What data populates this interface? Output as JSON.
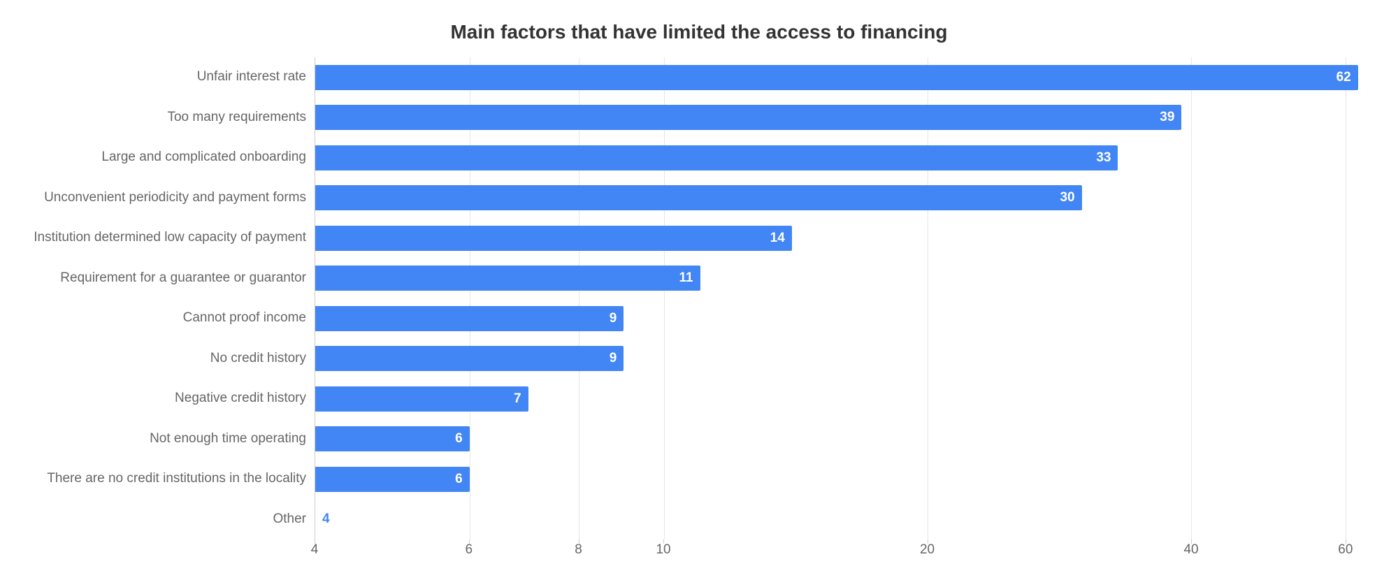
{
  "chart": {
    "type": "bar-horizontal",
    "title": "Main factors that have limited the access to financing",
    "title_fontsize": 28,
    "title_color": "#333333",
    "background_color": "#ffffff",
    "bar_color": "#4285f4",
    "grid_color": "#e6e6e6",
    "axis_color": "#cccccc",
    "label_color": "#666666",
    "label_fontsize": 19,
    "value_fontsize": 19,
    "value_color_inside": "#ffffff",
    "value_color_outside": "#4285f4",
    "bar_height_pct": 62,
    "x_scale": "log",
    "x_ticks": [
      4,
      6,
      8,
      10,
      20,
      40,
      60
    ],
    "x_min": 4,
    "x_max": 64,
    "categories": [
      {
        "label": "Unfair interest rate",
        "value": 62
      },
      {
        "label": "Too many requirements",
        "value": 39
      },
      {
        "label": "Large and complicated onboarding",
        "value": 33
      },
      {
        "label": "Unconvenient periodicity and payment forms",
        "value": 30
      },
      {
        "label": "Institution determined low capacity of payment",
        "value": 14
      },
      {
        "label": "Requirement for a guarantee or guarantor",
        "value": 11
      },
      {
        "label": "Cannot proof income",
        "value": 9
      },
      {
        "label": "No credit history",
        "value": 9
      },
      {
        "label": "Negative credit history",
        "value": 7
      },
      {
        "label": "Not enough time operating",
        "value": 6
      },
      {
        "label": "There are no credit institutions in the locality",
        "value": 6
      },
      {
        "label": "Other",
        "value": 4
      }
    ]
  }
}
